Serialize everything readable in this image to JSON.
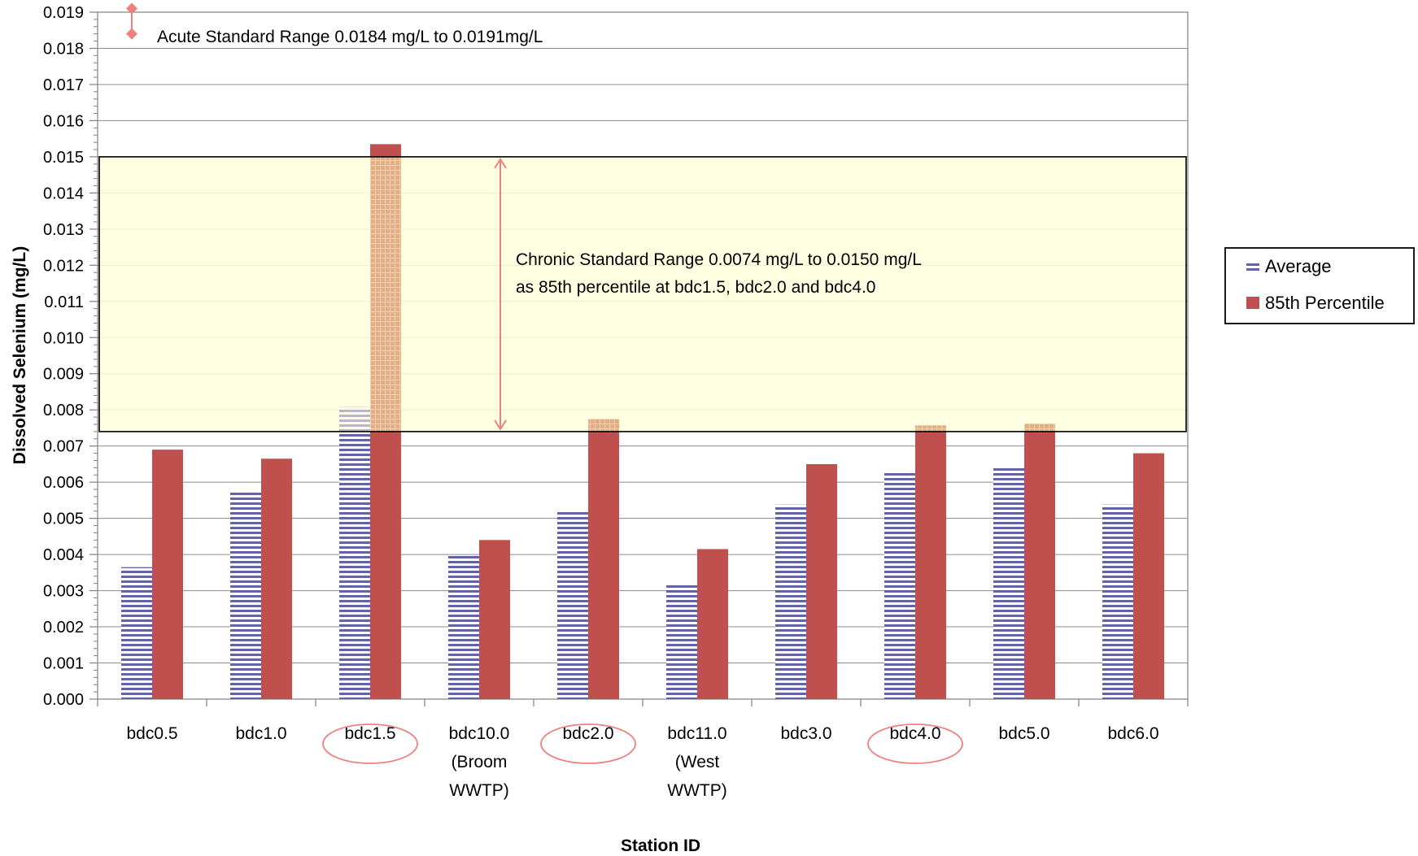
{
  "chart_data": {
    "type": "bar",
    "xlabel": "Station ID",
    "ylabel": "Dissolved Selenium (mg/L)",
    "ylim": [
      0,
      0.019
    ],
    "ytick_step": 0.001,
    "ytick_labels": [
      "0.000",
      "0.001",
      "0.002",
      "0.003",
      "0.004",
      "0.005",
      "0.006",
      "0.007",
      "0.008",
      "0.009",
      "0.010",
      "0.011",
      "0.012",
      "0.013",
      "0.014",
      "0.015",
      "0.016",
      "0.017",
      "0.018",
      "0.019"
    ],
    "grid": true,
    "legend_position": "right",
    "categories": [
      [
        "bdc0.5"
      ],
      [
        "bdc1.0"
      ],
      [
        "bdc1.5"
      ],
      [
        "bdc10.0",
        "(Broom",
        "WWTP)"
      ],
      [
        "bdc2.0"
      ],
      [
        "bdc11.0",
        "(West",
        "WWTP)"
      ],
      [
        "bdc3.0"
      ],
      [
        "bdc4.0"
      ],
      [
        "bdc5.0"
      ],
      [
        "bdc6.0"
      ]
    ],
    "circled_categories": [
      2,
      4,
      7
    ],
    "series": [
      {
        "name": "Average",
        "color": "#6264a6",
        "pattern": "horizontal-stripes",
        "values": [
          0.00365,
          0.00573,
          0.00808,
          0.00398,
          0.0052,
          0.00318,
          0.00538,
          0.00625,
          0.00642,
          0.00538
        ]
      },
      {
        "name": "85th Percentile",
        "color": "#c0504d",
        "pattern": "solid",
        "values": [
          0.0069,
          0.00665,
          0.01535,
          0.0044,
          0.00775,
          0.00415,
          0.0065,
          0.00757,
          0.00762,
          0.0068
        ]
      }
    ],
    "chronic_range": {
      "low": 0.0074,
      "high": 0.015,
      "fill": "#ffffdd",
      "label_lines": [
        "Chronic Standard Range 0.0074 mg/L to 0.0150 mg/L",
        "as 85th percentile at bdc1.5, bdc2.0 and bdc4.0"
      ]
    },
    "acute_range": {
      "low": 0.0184,
      "high": 0.0191,
      "color": "#f08080",
      "label": "Acute Standard Range 0.0184 mg/L to 0.0191mg/L"
    }
  }
}
